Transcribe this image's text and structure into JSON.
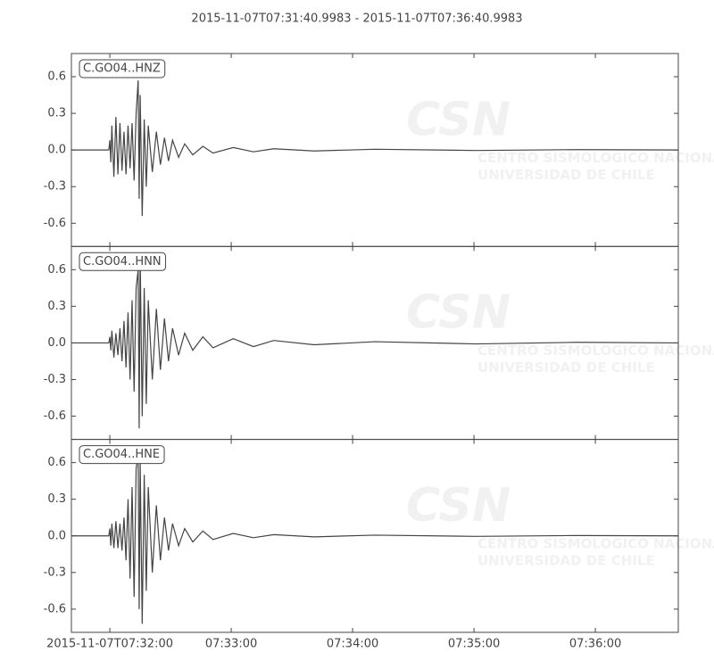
{
  "chart_data": [
    {
      "type": "line",
      "title": "2015-11-07T07:31:40.9983  -  2015-11-07T07:36:40.9983",
      "label": "C.GO04..HNZ",
      "color": "#444444",
      "x": [
        0,
        18.5,
        19,
        19.5,
        20,
        21,
        22,
        23,
        24,
        25,
        26,
        27,
        28,
        29,
        30,
        31,
        32,
        33,
        33.5,
        34,
        35,
        36,
        37,
        38,
        40,
        42,
        44,
        46,
        48,
        50,
        53,
        56,
        60,
        65,
        70,
        80,
        90,
        100,
        120,
        150,
        200,
        250,
        300
      ],
      "values": [
        0,
        0,
        0.08,
        -0.1,
        0.2,
        -0.22,
        0.27,
        -0.2,
        0.22,
        -0.17,
        0.15,
        -0.2,
        0.2,
        -0.15,
        0.22,
        -0.25,
        0.3,
        0.57,
        -0.4,
        0.45,
        -0.54,
        0.25,
        -0.3,
        0.2,
        -0.18,
        0.15,
        -0.12,
        0.1,
        -0.09,
        0.08,
        -0.06,
        0.05,
        -0.04,
        0.03,
        -0.025,
        0.02,
        -0.015,
        0.01,
        -0.008,
        0.006,
        -0.004,
        0.003,
        0
      ],
      "xlim": [
        0,
        300
      ],
      "ylim": [
        -0.79,
        0.79
      ],
      "yticks": [
        0.6,
        0.3,
        {
          "value": 0,
          "label": "0.0"
        },
        -0.3,
        -0.6
      ]
    },
    {
      "type": "line",
      "label": "C.GO04..HNN",
      "color": "#444444",
      "x": [
        0,
        18.5,
        19,
        19.5,
        20,
        21,
        22,
        23,
        24,
        25,
        26,
        27,
        28,
        29,
        30,
        31,
        32,
        33,
        33.5,
        34,
        35,
        36,
        37,
        38,
        40,
        42,
        44,
        46,
        48,
        50,
        53,
        56,
        60,
        65,
        70,
        80,
        90,
        100,
        120,
        150,
        200,
        250,
        300
      ],
      "values": [
        0,
        0,
        0.05,
        -0.06,
        0.1,
        -0.12,
        0.08,
        -0.1,
        0.12,
        -0.15,
        0.18,
        -0.2,
        0.25,
        -0.3,
        0.35,
        -0.4,
        0.45,
        0.6,
        -0.7,
        0.72,
        -0.6,
        0.45,
        -0.5,
        0.35,
        -0.3,
        0.28,
        -0.22,
        0.2,
        -0.15,
        0.12,
        -0.1,
        0.08,
        -0.06,
        0.05,
        -0.04,
        0.035,
        -0.03,
        0.02,
        -0.015,
        0.01,
        -0.008,
        0.005,
        0
      ],
      "xlim": [
        0,
        300
      ],
      "ylim": [
        -0.79,
        0.79
      ],
      "yticks": [
        0.6,
        0.3,
        {
          "value": 0,
          "label": "0.0"
        },
        -0.3,
        -0.6
      ]
    },
    {
      "type": "line",
      "label": "C.GO04..HNE",
      "color": "#444444",
      "x": [
        0,
        18.5,
        19,
        19.5,
        20,
        21,
        22,
        23,
        24,
        25,
        26,
        27,
        28,
        29,
        30,
        31,
        32,
        33,
        33.5,
        34,
        35,
        36,
        37,
        38,
        40,
        42,
        44,
        46,
        48,
        50,
        53,
        56,
        60,
        65,
        70,
        80,
        90,
        100,
        120,
        150,
        200,
        250,
        300
      ],
      "values": [
        0,
        0,
        0.06,
        -0.08,
        0.1,
        -0.1,
        0.12,
        -0.1,
        0.1,
        -0.12,
        0.15,
        -0.2,
        0.3,
        -0.35,
        0.4,
        -0.5,
        0.55,
        0.68,
        -0.6,
        0.6,
        -0.72,
        0.5,
        -0.45,
        0.4,
        -0.3,
        0.25,
        -0.2,
        0.15,
        -0.12,
        0.1,
        -0.08,
        0.06,
        -0.05,
        0.04,
        -0.03,
        0.02,
        -0.015,
        0.01,
        -0.008,
        0.006,
        -0.004,
        0.003,
        0
      ],
      "xlim": [
        0,
        300
      ],
      "ylim": [
        -0.79,
        0.79
      ],
      "yticks": [
        0.6,
        0.3,
        {
          "value": 0,
          "label": "0.0"
        },
        -0.3,
        -0.6
      ],
      "xticks": [
        {
          "value": 19.0017,
          "label": "2015-11-07T07:32:00"
        },
        {
          "value": 79.0017,
          "label": "07:33:00"
        },
        {
          "value": 139.0017,
          "label": "07:34:00"
        },
        {
          "value": 199.0017,
          "label": "07:35:00"
        },
        {
          "value": 259.0017,
          "label": "07:36:00"
        }
      ]
    }
  ],
  "watermark": {
    "logo": "CSN",
    "line1": "CENTRO SISMOLOGICO NACIONAL",
    "line2": "UNIVERSIDAD DE CHILE"
  }
}
